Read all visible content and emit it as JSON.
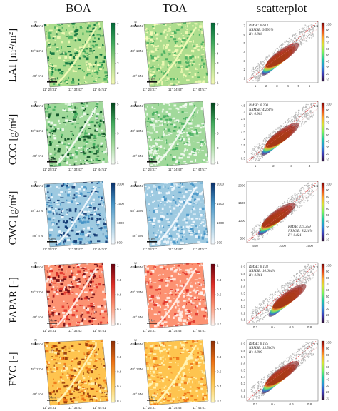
{
  "columns": {
    "boa": "BOA",
    "toa": "TOA",
    "scatter": "scatterplot"
  },
  "rows": [
    {
      "label": "LAI [m²/m²]",
      "palette": [
        "#f7fcb9",
        "#addd8e",
        "#41ab5d",
        "#006837"
      ],
      "cbar_ticks": [
        "7",
        "6",
        "5",
        "4",
        "3",
        "2",
        "1"
      ],
      "scatter_ticks_y": [
        "7",
        "6",
        "5",
        "4",
        "3",
        "2",
        "1"
      ],
      "scatter_ticks_x": [
        "1",
        "2",
        "3",
        "4",
        "5",
        "6"
      ],
      "stats": [
        "RMSE: 0.613",
        "NRMSE: 9.599%",
        "R²: 0.866"
      ],
      "stats_pos": "top"
    },
    {
      "label": "CCC [g/m²]",
      "palette": [
        "#f7fcf5",
        "#a1d99b",
        "#41ab5d",
        "#00441b"
      ],
      "cbar_ticks": [
        "5",
        "4",
        "3",
        "2",
        "1"
      ],
      "scatter_ticks_y": [
        "4.5",
        "4",
        "3.5",
        "3",
        "2.5",
        "2",
        "1.5",
        "1",
        "0.5"
      ],
      "scatter_ticks_x": [
        "1",
        "2",
        "3",
        "4"
      ],
      "stats": [
        "RMSE: 0.200",
        "NRMSE: 4.266%",
        "R²: 0.909"
      ],
      "stats_pos": "top"
    },
    {
      "label": "CWC [g/m²]",
      "palette": [
        "#f7fbff",
        "#9ecae1",
        "#4292c6",
        "#08306b"
      ],
      "cbar_ticks": [
        "2000",
        "1500",
        "1000",
        "500"
      ],
      "scatter_ticks_y": [
        "2000",
        "1500",
        "1000",
        "500"
      ],
      "scatter_ticks_x": [
        "500",
        "1000",
        "1500"
      ],
      "stats": [
        "RMSE: 119.359",
        "NRMSE: 8.226%",
        "R²: 0.821"
      ],
      "stats_pos": "bottom"
    },
    {
      "label": "FAPAR [-]",
      "palette": [
        "#fff5f0",
        "#fc9272",
        "#de2d26",
        "#67000d"
      ],
      "cbar_ticks": [
        "1",
        "0.8",
        "0.6",
        "0.4",
        "0.2"
      ],
      "scatter_ticks_y": [
        "0.9",
        "0.8",
        "0.7",
        "0.6",
        "0.5",
        "0.4",
        "0.3",
        "0.2",
        "0.1"
      ],
      "scatter_ticks_x": [
        "0.2",
        "0.4",
        "0.6",
        "0.8"
      ],
      "stats": [
        "RMSE: 0.103",
        "NRMSE: 10.604%",
        "R²: 0.861"
      ],
      "stats_pos": "top"
    },
    {
      "label": "FVC [-]",
      "palette": [
        "#fff7bc",
        "#fec44f",
        "#ec7014",
        "#8c2d04"
      ],
      "cbar_ticks": [
        "1",
        "0.8",
        "0.6",
        "0.4",
        "0.2"
      ],
      "scatter_ticks_y": [
        "0.9",
        "0.8",
        "0.7",
        "0.6",
        "0.5",
        "0.4",
        "0.3",
        "0.2",
        "0.1"
      ],
      "scatter_ticks_x": [
        "0.2",
        "0.4",
        "0.6",
        "0.8"
      ],
      "stats": [
        "RMSE: 0.125",
        "NRMSE: 13.506%",
        "R²: 0.809"
      ],
      "stats_pos": "top"
    }
  ],
  "map_labels": {
    "north": "N",
    "scale": "5 km",
    "lat_top": "48° 15'N",
    "lat_mid": "48° 13'N",
    "lat_bot": "48° 5'N",
    "lon_1": "11° 25'31\"",
    "lon_2": "11° 34'43\"",
    "lon_3": "11° 44'51\""
  },
  "one_to_one": "1:1",
  "density_ticks": [
    "100",
    "90",
    "80",
    "70",
    "60",
    "50",
    "40",
    "30",
    "20",
    "10"
  ]
}
